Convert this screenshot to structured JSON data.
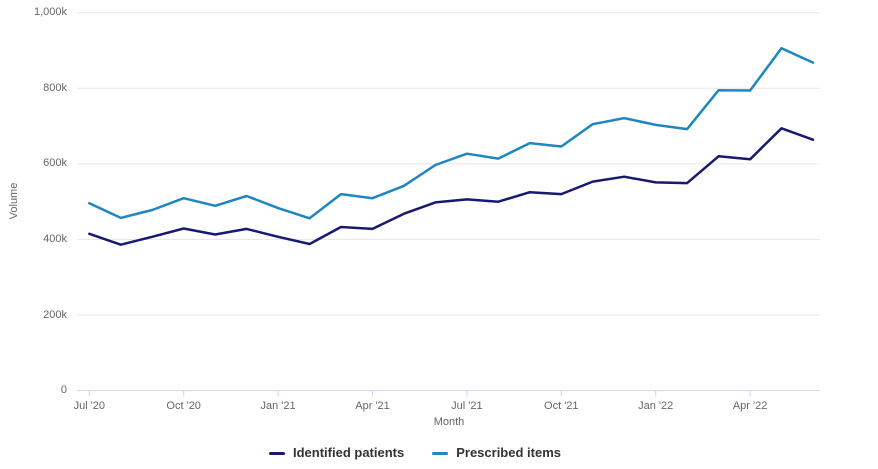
{
  "chart_data": {
    "type": "line",
    "title": "",
    "xlabel": "Month",
    "ylabel": "Volume",
    "grid": true,
    "legend_position": "bottom",
    "x": [
      "Jul '20",
      "Aug '20",
      "Sep '20",
      "Oct '20",
      "Nov '20",
      "Dec '20",
      "Jan '21",
      "Feb '21",
      "Mar '21",
      "Apr '21",
      "May '21",
      "Jun '21",
      "Jul '21",
      "Aug '21",
      "Sep '21",
      "Oct '21",
      "Nov '21",
      "Dec '21",
      "Jan '22",
      "Feb '22",
      "Mar '22",
      "Apr '22",
      "May '22",
      "Jun '22"
    ],
    "series": [
      {
        "name": "Identified patients",
        "color": "#191970",
        "values": [
          415000,
          386000,
          407000,
          429000,
          413000,
          428000,
          407000,
          388000,
          433000,
          428000,
          468000,
          498000,
          506000,
          500000,
          525000,
          520000,
          553000,
          566000,
          551000,
          549000,
          620000,
          612000,
          694000,
          664000
        ]
      },
      {
        "name": "Prescribed items",
        "color": "#1e86c1",
        "values": [
          496000,
          457000,
          478000,
          509000,
          489000,
          515000,
          483000,
          456000,
          520000,
          509000,
          542000,
          597000,
          627000,
          614000,
          655000,
          646000,
          705000,
          721000,
          703000,
          692000,
          795000,
          794000,
          906000,
          868000
        ]
      }
    ],
    "ylim": [
      0,
      1000000
    ],
    "yticks": [
      {
        "value": 0,
        "label": "0"
      },
      {
        "value": 200000,
        "label": "200k"
      },
      {
        "value": 400000,
        "label": "400k"
      },
      {
        "value": 600000,
        "label": "600k"
      },
      {
        "value": 800000,
        "label": "800k"
      },
      {
        "value": 1000000,
        "label": "1,000k"
      }
    ],
    "xticks": [
      {
        "index": 0,
        "label": "Jul '20"
      },
      {
        "index": 3,
        "label": "Oct '20"
      },
      {
        "index": 6,
        "label": "Jan '21"
      },
      {
        "index": 9,
        "label": "Apr '21"
      },
      {
        "index": 12,
        "label": "Jul '21"
      },
      {
        "index": 15,
        "label": "Oct '21"
      },
      {
        "index": 18,
        "label": "Jan '22"
      },
      {
        "index": 21,
        "label": "Apr '22"
      }
    ]
  },
  "colors": {
    "gridline": "#e6e6e6",
    "axis_line": "#ccd6eb",
    "tick_label": "#666666",
    "axis_title": "#666666",
    "legend_text": "#333333"
  }
}
